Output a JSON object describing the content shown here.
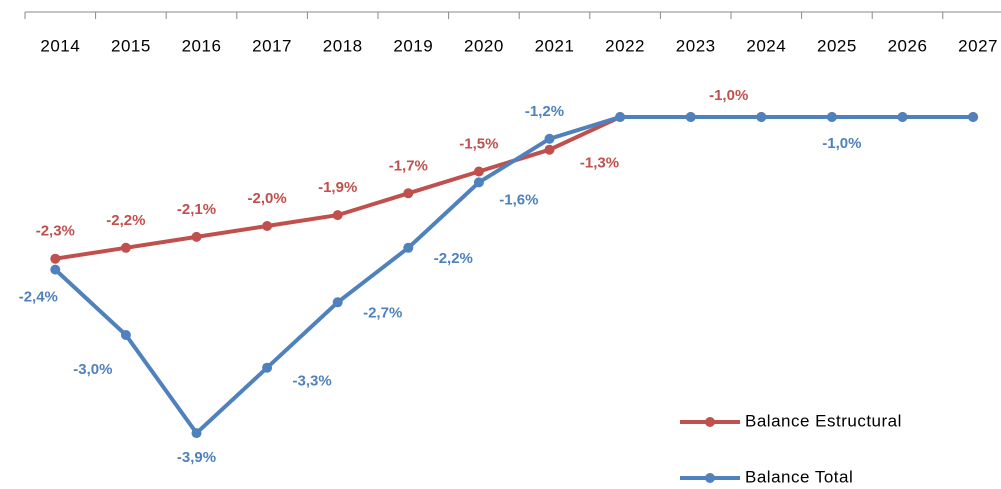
{
  "chart_data": {
    "type": "line",
    "categories": [
      "2014",
      "2015",
      "2016",
      "2017",
      "2018",
      "2019",
      "2020",
      "2021",
      "2022",
      "2023",
      "2024",
      "2025",
      "2026",
      "2027"
    ],
    "series": [
      {
        "name": "Balance Estructural",
        "color": "#c0504d",
        "values": [
          -2.3,
          -2.2,
          -2.1,
          -2.0,
          -1.9,
          -1.7,
          -1.5,
          -1.3,
          -1.0,
          -1.0,
          -1.0,
          -1.0,
          -1.0,
          -1.0
        ],
        "value_labels": [
          "-2,3%",
          "-2,2%",
          "-2,1%",
          "-2,0%",
          "-1,9%",
          "-1,7%",
          "-1,5%",
          "-1,3%",
          null,
          "-1,0%",
          null,
          null,
          null,
          null
        ]
      },
      {
        "name": "Balance Total",
        "color": "#4f81bd",
        "values": [
          -2.4,
          -3.0,
          -3.9,
          -3.3,
          -2.7,
          -2.2,
          -1.6,
          -1.2,
          -1.0,
          -1.0,
          -1.0,
          -1.0,
          -1.0,
          -1.0
        ],
        "value_labels": [
          "-2,4%",
          "-3,0%",
          "-3,9%",
          "-3,3%",
          "-2,7%",
          "-2,2%",
          "-1,6%",
          "-1,2%",
          null,
          null,
          null,
          "-1,0%",
          null,
          null
        ]
      }
    ],
    "ylim": [
      -4,
      -0.5
    ],
    "legend": "bottom-right"
  }
}
